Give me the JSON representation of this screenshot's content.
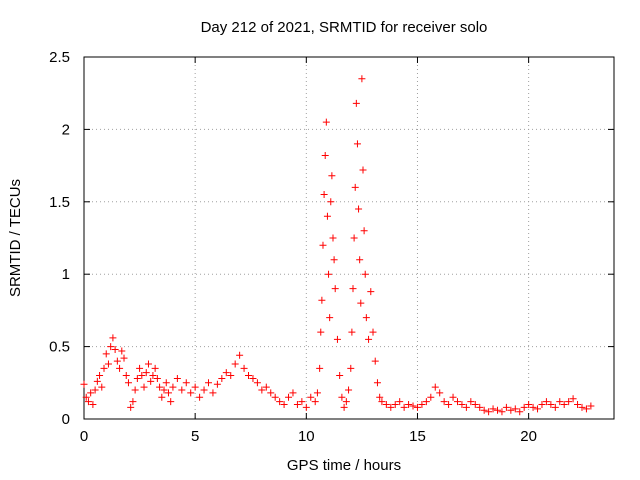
{
  "chart_data": {
    "type": "scatter",
    "title": "Day 212 of 2021, SRMTID for receiver solo",
    "xlabel": "GPS time / hours",
    "ylabel": "SRMTID / TECUs",
    "xlim": [
      0,
      23.84
    ],
    "ylim": [
      0,
      2.5
    ],
    "xticks": [
      0,
      5,
      10,
      15,
      20
    ],
    "xtick_labels": [
      "0",
      "5",
      "10",
      "15",
      "20"
    ],
    "yticks": [
      0,
      0.5,
      1,
      1.5,
      2,
      2.5
    ],
    "ytick_labels": [
      "0",
      "0.5",
      "1",
      "1.5",
      "2",
      "2.5"
    ],
    "grid": true,
    "marker": "+",
    "color": "#ff0000",
    "series": [
      {
        "name": "SRMTID",
        "x": [
          0.0,
          0.1,
          0.2,
          0.3,
          0.4,
          0.5,
          0.6,
          0.7,
          0.8,
          0.9,
          1.0,
          1.1,
          1.2,
          1.3,
          1.4,
          1.5,
          1.6,
          1.7,
          1.8,
          1.9,
          2.0,
          2.1,
          2.2,
          2.3,
          2.4,
          2.5,
          2.6,
          2.7,
          2.8,
          2.9,
          3.0,
          3.1,
          3.2,
          3.3,
          3.4,
          3.5,
          3.6,
          3.7,
          3.8,
          3.9,
          4.0,
          4.2,
          4.4,
          4.6,
          4.8,
          5.0,
          5.2,
          5.4,
          5.6,
          5.8,
          6.0,
          6.2,
          6.4,
          6.6,
          6.8,
          7.0,
          7.2,
          7.4,
          7.6,
          7.8,
          8.0,
          8.2,
          8.4,
          8.6,
          8.8,
          9.0,
          9.2,
          9.4,
          9.6,
          9.8,
          10.0,
          10.2,
          10.4,
          10.5,
          10.6,
          10.65,
          10.7,
          10.75,
          10.8,
          10.85,
          10.9,
          10.95,
          11.0,
          11.05,
          11.1,
          11.15,
          11.2,
          11.25,
          11.3,
          11.4,
          11.5,
          11.6,
          11.7,
          11.8,
          11.9,
          12.0,
          12.05,
          12.1,
          12.15,
          12.2,
          12.25,
          12.3,
          12.35,
          12.4,
          12.45,
          12.5,
          12.55,
          12.6,
          12.65,
          12.7,
          12.8,
          12.9,
          13.0,
          13.1,
          13.2,
          13.3,
          13.4,
          13.6,
          13.8,
          14.0,
          14.2,
          14.4,
          14.6,
          14.8,
          15.0,
          15.2,
          15.4,
          15.6,
          15.8,
          16.0,
          16.2,
          16.4,
          16.6,
          16.8,
          17.0,
          17.2,
          17.4,
          17.6,
          17.8,
          18.0,
          18.2,
          18.4,
          18.6,
          18.8,
          19.0,
          19.2,
          19.4,
          19.6,
          19.8,
          20.0,
          20.2,
          20.4,
          20.6,
          20.8,
          21.0,
          21.2,
          21.4,
          21.6,
          21.8,
          22.0,
          22.2,
          22.4,
          22.6,
          22.8
        ],
        "y": [
          0.24,
          0.15,
          0.12,
          0.18,
          0.1,
          0.2,
          0.26,
          0.3,
          0.22,
          0.35,
          0.45,
          0.38,
          0.5,
          0.56,
          0.48,
          0.4,
          0.35,
          0.47,
          0.42,
          0.3,
          0.25,
          0.08,
          0.12,
          0.2,
          0.28,
          0.35,
          0.3,
          0.22,
          0.32,
          0.38,
          0.26,
          0.3,
          0.35,
          0.28,
          0.22,
          0.15,
          0.2,
          0.25,
          0.18,
          0.12,
          0.22,
          0.28,
          0.2,
          0.25,
          0.18,
          0.22,
          0.15,
          0.2,
          0.25,
          0.18,
          0.24,
          0.28,
          0.32,
          0.3,
          0.38,
          0.44,
          0.35,
          0.3,
          0.28,
          0.25,
          0.2,
          0.22,
          0.18,
          0.15,
          0.12,
          0.1,
          0.15,
          0.18,
          0.1,
          0.12,
          0.08,
          0.15,
          0.12,
          0.18,
          0.35,
          0.6,
          0.82,
          1.2,
          1.55,
          1.82,
          2.05,
          1.4,
          1.0,
          0.7,
          1.5,
          1.68,
          1.25,
          1.1,
          0.9,
          0.55,
          0.3,
          0.15,
          0.08,
          0.12,
          0.2,
          0.35,
          0.6,
          0.9,
          1.25,
          1.6,
          2.18,
          1.9,
          1.45,
          1.1,
          0.8,
          2.35,
          1.72,
          1.3,
          1.0,
          0.7,
          0.55,
          0.88,
          0.6,
          0.4,
          0.25,
          0.15,
          0.12,
          0.1,
          0.08,
          0.1,
          0.12,
          0.08,
          0.1,
          0.09,
          0.08,
          0.1,
          0.12,
          0.15,
          0.22,
          0.18,
          0.12,
          0.1,
          0.15,
          0.12,
          0.1,
          0.08,
          0.12,
          0.1,
          0.08,
          0.06,
          0.05,
          0.07,
          0.06,
          0.05,
          0.08,
          0.06,
          0.07,
          0.05,
          0.08,
          0.1,
          0.08,
          0.07,
          0.1,
          0.12,
          0.1,
          0.08,
          0.12,
          0.1,
          0.12,
          0.14,
          0.1,
          0.08,
          0.07,
          0.09
        ]
      }
    ]
  }
}
